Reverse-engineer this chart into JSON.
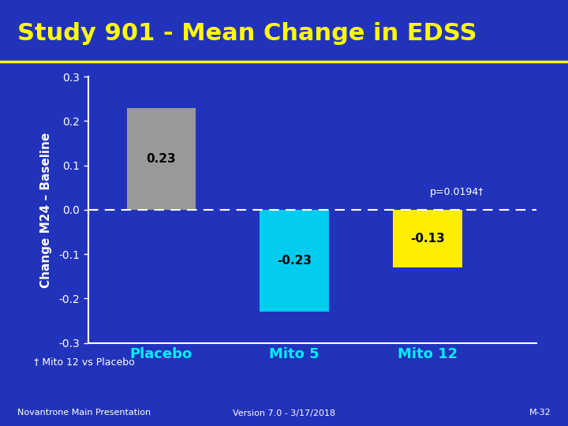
{
  "title": "Study 901 - Mean Change in EDSS",
  "ylabel": "Change M24 – Baseline",
  "categories": [
    "Placebo",
    "Mito 5",
    "Mito 12"
  ],
  "values": [
    0.23,
    -0.23,
    -0.13
  ],
  "bar_colors": [
    "#999999",
    "#00ccee",
    "#ffee00"
  ],
  "bar_labels": [
    "0.23",
    "-0.23",
    "-0.13"
  ],
  "ylim": [
    -0.3,
    0.3
  ],
  "yticks": [
    -0.3,
    -0.2,
    -0.1,
    0.0,
    0.1,
    0.2,
    0.3
  ],
  "background_color": "#2233bb",
  "title_color": "#ffff00",
  "title_fontsize": 22,
  "axis_color": "#ffffff",
  "tick_color": "#ffffff",
  "bar_label_color": "#000000",
  "bar_label_fontsize": 11,
  "xtick_color": "#00eeff",
  "xtick_fontsize": 13,
  "ylabel_color": "#ffffff",
  "ylabel_fontsize": 11,
  "p_text": "p=0.0194†",
  "p_text_color": "#ffffff",
  "p_text_fontsize": 9,
  "footer_left": "Novantrone Main Presentation",
  "footer_center": "Version 7.0 - 3/17/2018",
  "footer_right": "M-32",
  "footer_color": "#ffffff",
  "footer_fontsize": 8,
  "footnote": "† Mito 12 vs Placebo",
  "footnote_color": "#ffffff",
  "footnote_fontsize": 9,
  "title_line_color": "#ffff00",
  "dashed_line_color": "#ffffff"
}
